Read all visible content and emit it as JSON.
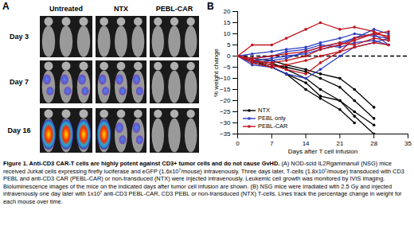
{
  "panel_a": {
    "label": "A",
    "columns": [
      "Untreated",
      "NTX",
      "PEBL-CAR"
    ],
    "rows": [
      "Day 3",
      "Day 7",
      "Day 16"
    ]
  },
  "chart_data": {
    "type": "line",
    "panel_label": "B",
    "x_label": "Days after T cell infusion",
    "y_label": "% weight change",
    "x": [
      0,
      3,
      7,
      10,
      14,
      17,
      21,
      24,
      28,
      31
    ],
    "xlim": [
      0,
      35
    ],
    "xticks": [
      0,
      7,
      14,
      21,
      28,
      35
    ],
    "ylim": [
      -35,
      20
    ],
    "yticks": [
      -35,
      -30,
      -25,
      -20,
      -15,
      -10,
      -5,
      0,
      5,
      10,
      15,
      20
    ],
    "grid": false,
    "legend": "lower left",
    "hline": {
      "y": 0,
      "line_style": "dashed",
      "color": "#000000"
    },
    "series": [
      {
        "name": "NTX",
        "color": "#000000",
        "marker": "circle",
        "values": [
          [
            0,
            -2,
            -3,
            -6,
            -10,
            -15,
            -20,
            -27,
            -35,
            null
          ],
          [
            0,
            -3,
            -5,
            -8,
            -12,
            -18,
            -20,
            -25,
            -31,
            null
          ],
          [
            0,
            -2,
            -4,
            -5,
            -7,
            -10,
            -14,
            -20,
            -28,
            null
          ],
          [
            0,
            -1,
            -2,
            -4,
            -6,
            -8,
            -10,
            -15,
            -23,
            null
          ],
          [
            0,
            -2,
            -5,
            -8,
            -15,
            -19,
            -24,
            -30,
            null,
            null
          ]
        ]
      },
      {
        "name": "PEBL only",
        "color": "#2f3fbf",
        "marker": "circle",
        "values": [
          [
            0,
            -3,
            -2,
            -1,
            2,
            4,
            6,
            8,
            10,
            5
          ],
          [
            0,
            -4,
            -5,
            -8,
            -10,
            -6,
            0,
            4,
            6,
            8
          ],
          [
            0,
            -2,
            -1,
            0,
            1,
            3,
            5,
            8,
            12,
            10
          ],
          [
            0,
            1,
            2,
            3,
            4,
            6,
            8,
            10,
            9,
            8
          ],
          [
            0,
            -1,
            0,
            2,
            3,
            5,
            4,
            6,
            7,
            5
          ]
        ]
      },
      {
        "name": "PEBL-CAR",
        "color": "#c0141e",
        "marker": "circle",
        "values": [
          [
            0,
            5,
            5,
            8,
            12,
            15,
            12,
            13,
            11,
            8
          ],
          [
            0,
            -2,
            -3,
            -2,
            0,
            3,
            5,
            7,
            10,
            9
          ],
          [
            0,
            -1,
            0,
            1,
            2,
            4,
            6,
            5,
            8,
            7
          ],
          [
            0,
            -3,
            -5,
            -4,
            -2,
            0,
            2,
            4,
            6,
            5
          ],
          [
            0,
            -2,
            -4,
            -6,
            -8,
            -3,
            2,
            8,
            10,
            11
          ]
        ]
      }
    ]
  },
  "caption": {
    "title": "Figure 1. Anti-CD3 CAR-T cells are highly potent against CD3+ tumor cells and do not cause GvHD.",
    "text": "(A) NOD-scid IL2Rgammanull (NSG) mice received Jurkat cells expressing firefly luciferase and eGFP (1.6x10⁷/mouse) intravenously. Three days later, T-cells (1.8x10⁷/mouse) transduced with CD3 PEBL and anti-CD3 CAR (PEBL-CAR) or non-transduced (NTX) were injected intravenously. Leukemic cell growth was monitored by IVIS imaging. Bioluminescence images of the mice on the indicated days after tumor cell infusion are shown. (B) NSG mice were irradiated with 2.5 Gy and injected intravenously one day later with 1x10⁷ anti-CD3 PEBL-CAR, CD3 PEBL or non-transduced (NTX) T-cells. Lines track the percentage change in weight for each mouse over time."
  }
}
